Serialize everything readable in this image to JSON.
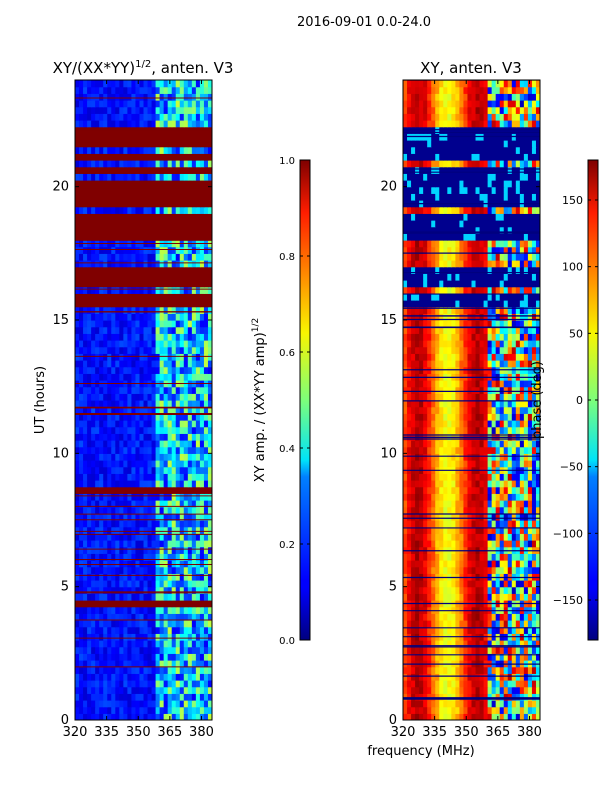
{
  "figure": {
    "suptitle": "2016-09-01 0.0-24.0",
    "shared_xlabel": "frequency (MHz)"
  },
  "chart_data": [
    {
      "type": "heatmap",
      "title_main": "XY/(XX*YY)",
      "title_exp": "1/2",
      "title_tail": ", anten. V3",
      "xlabel": "",
      "ylabel": "UT (hours)",
      "xlim": [
        320,
        385
      ],
      "ylim": [
        0,
        24
      ],
      "xticks": [
        320,
        335,
        350,
        365,
        380
      ],
      "yticks": [
        0,
        5,
        10,
        15,
        20
      ],
      "colorbar": {
        "label_main": "XY amp. / (XX*YY amp)",
        "label_exp": "1/2",
        "range": [
          0.0,
          1.0
        ],
        "ticks": [
          "0.0",
          "0.2",
          "0.4",
          "0.6",
          "0.8",
          "1.0"
        ],
        "colormap": "jet"
      },
      "saturated_bands_hours": [
        [
          21.0,
          21.3
        ],
        [
          21.6,
          22.2
        ],
        [
          20.4,
          20.7
        ],
        [
          19.3,
          20.2
        ],
        [
          18.1,
          18.9
        ],
        [
          16.3,
          17.0
        ],
        [
          15.4,
          15.9
        ],
        [
          13.9,
          14.1
        ],
        [
          8.5,
          8.7
        ],
        [
          6.4,
          6.6
        ],
        [
          4.2,
          4.4
        ]
      ],
      "high_signal_region_mhz": [
        358,
        383
      ]
    },
    {
      "type": "heatmap",
      "title_main": "XY, anten. V3",
      "xlabel": "frequency (MHz)",
      "ylabel": "",
      "xlim": [
        320,
        385
      ],
      "ylim": [
        0,
        24
      ],
      "xticks": [
        320,
        335,
        350,
        365,
        380
      ],
      "yticks": [
        0,
        5,
        10,
        15,
        20
      ],
      "colorbar": {
        "label_main": "phase (deg)",
        "range": [
          -180,
          180
        ],
        "ticks": [
          "−150",
          "−100",
          "−50",
          "0",
          "50",
          "100",
          "150"
        ],
        "tick_values": [
          -150,
          -100,
          -50,
          0,
          50,
          100,
          150
        ],
        "colormap": "jet"
      },
      "dominant_phase_deg": 160,
      "flagged_bands_hours": [
        [
          21.0,
          22.2
        ],
        [
          19.3,
          20.7
        ],
        [
          18.1,
          18.9
        ],
        [
          16.3,
          17.0
        ],
        [
          15.4,
          15.9
        ]
      ]
    }
  ]
}
